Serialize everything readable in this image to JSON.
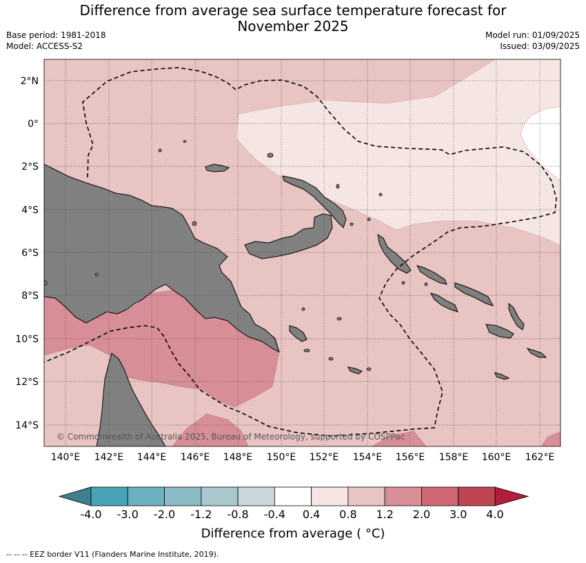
{
  "header": {
    "title_line1": "Difference from average sea surface temperature forecast for",
    "title_line2": "November 2025",
    "base_period": "Base period: 1981-2018",
    "model": "Model: ACCESS-S2",
    "model_run": "Model run: 01/09/2025",
    "issued": "Issued: 03/09/2025"
  },
  "map": {
    "lat_labels": [
      "2°N",
      "0°",
      "2°S",
      "4°S",
      "6°S",
      "8°S",
      "10°S",
      "12°S",
      "14°S"
    ],
    "lon_labels": [
      "140°E",
      "142°E",
      "144°E",
      "146°E",
      "148°E",
      "150°E",
      "152°E",
      "154°E",
      "156°E",
      "158°E",
      "160°E",
      "162°E"
    ],
    "copyright": "© Commonwealth of Australia 2025, Bureau of Meteorology, supported by COSPPac",
    "land_color": "#808080"
  },
  "colorbar": {
    "labels": [
      "-4.0",
      "-3.0",
      "-2.0",
      "-1.2",
      "-0.8",
      "-0.4",
      "0.4",
      "0.8",
      "1.2",
      "2.0",
      "3.0",
      "4.0"
    ],
    "colors": [
      "#3e808d",
      "#4aa2b5",
      "#6bb1c0",
      "#8cbac5",
      "#a9c8cd",
      "#cbd8db",
      "#ffffff",
      "#f5e6e4",
      "#e8c4c2",
      "#d88e96",
      "#cd6872",
      "#bf4553",
      "#b01e3c"
    ],
    "title": "Difference from average ( °C)"
  },
  "footnote": "--  --  -- EEZ border V11 (Flanders Marine Institute, 2019)."
}
